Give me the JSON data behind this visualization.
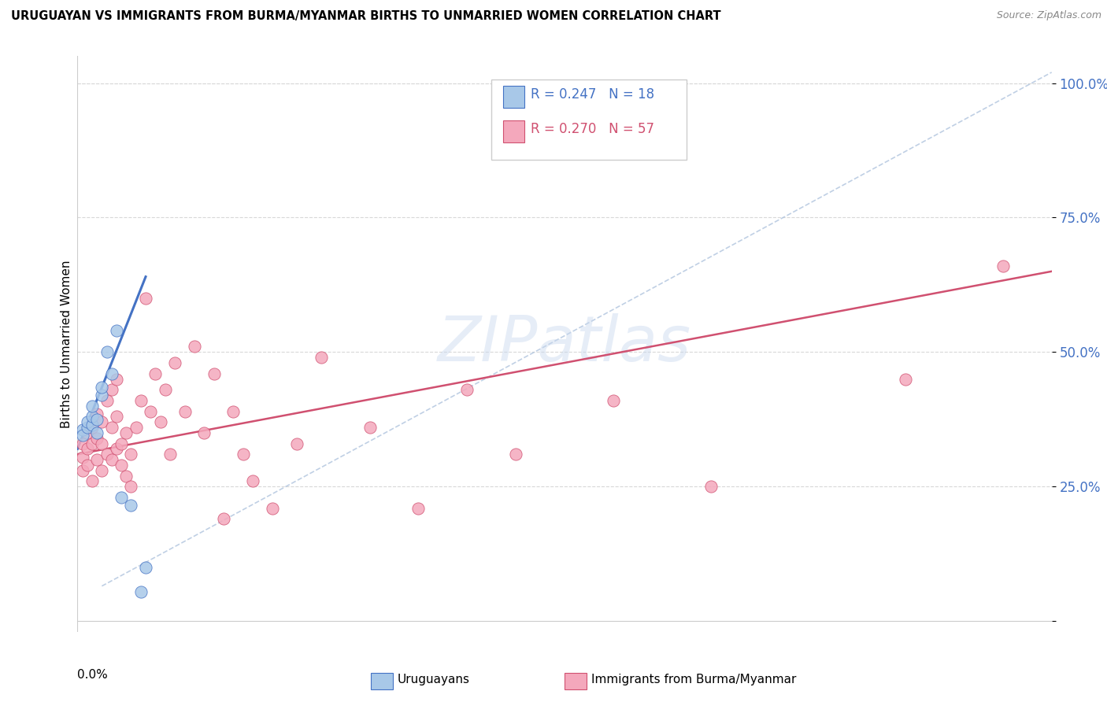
{
  "title": "URUGUAYAN VS IMMIGRANTS FROM BURMA/MYANMAR BIRTHS TO UNMARRIED WOMEN CORRELATION CHART",
  "source": "Source: ZipAtlas.com",
  "ylabel": "Births to Unmarried Women",
  "legend_label1": "Uruguayans",
  "legend_label2": "Immigrants from Burma/Myanmar",
  "r1": 0.247,
  "n1": 18,
  "r2": 0.27,
  "n2": 57,
  "color_blue": "#a8c8e8",
  "color_pink": "#f4a8bc",
  "color_blue_line": "#4472c4",
  "color_pink_line": "#d05070",
  "color_ref_line": "#b0c4de",
  "xlim": [
    0.0,
    0.2
  ],
  "ylim": [
    -0.02,
    1.05
  ],
  "yticks": [
    0.0,
    0.25,
    0.5,
    0.75,
    1.0
  ],
  "ytick_labels": [
    "",
    "25.0%",
    "50.0%",
    "75.0%",
    "100.0%"
  ],
  "uruguayan_x": [
    0.001,
    0.001,
    0.002,
    0.002,
    0.003,
    0.003,
    0.003,
    0.004,
    0.004,
    0.005,
    0.005,
    0.006,
    0.007,
    0.008,
    0.009,
    0.011,
    0.013,
    0.014
  ],
  "uruguayan_y": [
    0.355,
    0.345,
    0.36,
    0.37,
    0.365,
    0.38,
    0.4,
    0.35,
    0.375,
    0.42,
    0.435,
    0.5,
    0.46,
    0.54,
    0.23,
    0.215,
    0.055,
    0.1
  ],
  "burma_x": [
    0.001,
    0.001,
    0.001,
    0.002,
    0.002,
    0.002,
    0.003,
    0.003,
    0.003,
    0.004,
    0.004,
    0.004,
    0.005,
    0.005,
    0.005,
    0.006,
    0.006,
    0.007,
    0.007,
    0.007,
    0.008,
    0.008,
    0.008,
    0.009,
    0.009,
    0.01,
    0.01,
    0.011,
    0.011,
    0.012,
    0.013,
    0.014,
    0.015,
    0.016,
    0.017,
    0.018,
    0.019,
    0.02,
    0.022,
    0.024,
    0.026,
    0.028,
    0.03,
    0.032,
    0.034,
    0.036,
    0.04,
    0.045,
    0.05,
    0.06,
    0.07,
    0.08,
    0.09,
    0.11,
    0.13,
    0.17,
    0.19
  ],
  "burma_y": [
    0.305,
    0.33,
    0.28,
    0.35,
    0.32,
    0.29,
    0.36,
    0.33,
    0.26,
    0.385,
    0.34,
    0.3,
    0.37,
    0.33,
    0.28,
    0.41,
    0.31,
    0.43,
    0.36,
    0.3,
    0.45,
    0.38,
    0.32,
    0.29,
    0.33,
    0.35,
    0.27,
    0.31,
    0.25,
    0.36,
    0.41,
    0.6,
    0.39,
    0.46,
    0.37,
    0.43,
    0.31,
    0.48,
    0.39,
    0.51,
    0.35,
    0.46,
    0.19,
    0.39,
    0.31,
    0.26,
    0.21,
    0.33,
    0.49,
    0.36,
    0.21,
    0.43,
    0.31,
    0.41,
    0.25,
    0.45,
    0.66
  ],
  "blue_line_x": [
    0.0,
    0.014
  ],
  "blue_line_y": [
    0.32,
    0.64
  ],
  "pink_line_x": [
    0.0,
    0.2
  ],
  "pink_line_y": [
    0.31,
    0.65
  ],
  "ref_line_x": [
    0.005,
    0.2
  ],
  "ref_line_y": [
    0.065,
    1.02
  ]
}
